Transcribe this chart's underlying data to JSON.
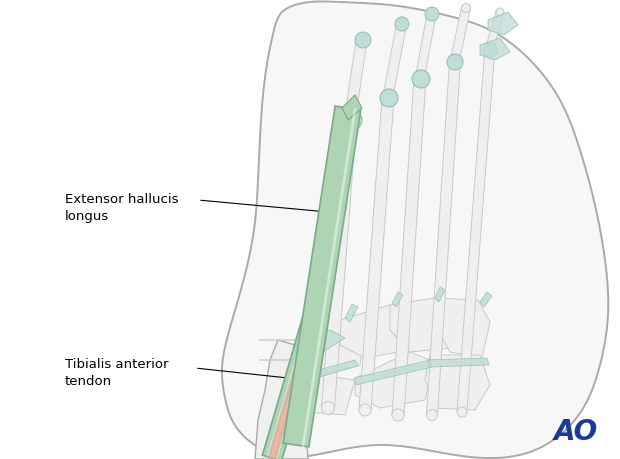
{
  "background_color": "#ffffff",
  "foot_fill": "#f7f7f7",
  "foot_edge": "#aaaaaa",
  "bone_fill": "#efefef",
  "bone_edge": "#c8c8c8",
  "cartilage_fill": "#c0ddd8",
  "cartilage_edge": "#90b8b0",
  "tendon_green": "#aed4b4",
  "tendon_green_edge": "#7aaa88",
  "tendon_pink": "#e8a898",
  "tendon_cream": "#f0e0d0",
  "label_ehl": "Extensor hallucis\nlongus",
  "label_ta": "Tibialis anterior\ntendon",
  "ao_text": "AO",
  "ao_color": "#1a3a9a",
  "label_fontsize": 9.5,
  "ao_fontsize": 20,
  "figsize": [
    6.2,
    4.59
  ],
  "dpi": 100
}
